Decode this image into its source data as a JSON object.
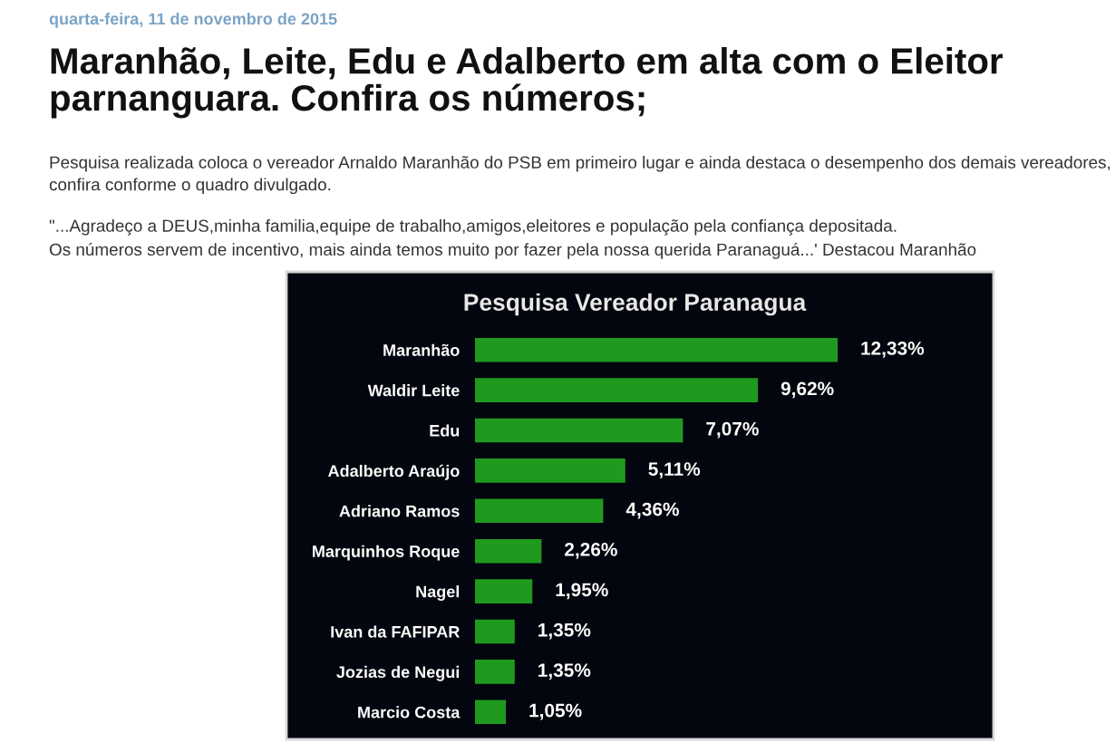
{
  "chart_data": {
    "type": "bar",
    "orientation": "horizontal",
    "title": "Maranhão, Leite, Edu e Adalberto em alta com o Eleitor parnanguara. Confira os números;",
    "subtitle": "Pesquisa Vereador Paranagua",
    "annotations": [
      "quarta-feira, 11 de novembro de 2015",
      "Pesquisa realizada coloca o vereador Arnaldo Maranhão do PSB em primeiro lugar e ainda destaca o desempenho dos demais vereadores, confira conforme o quadro divulgado.",
      "\"...Agradeço a DEUS,minha familia,equipe de trabalho,amigos,eleitores e população pela confiança depositada.",
      "Os números servem de incentivo, mais ainda temos muito por fazer pela nossa querida Paranaguá...' Destacou Maranhão"
    ],
    "categories": [
      "Maranhão",
      "Waldir Leite",
      "Edu",
      "Adalberto Araújo",
      "Adriano Ramos",
      "Marquinhos Roque",
      "Nagel",
      "Ivan da FAFIPAR",
      "Jozias de Negui",
      "Marcio Costa"
    ],
    "values": [
      12.33,
      9.62,
      7.07,
      5.11,
      4.36,
      2.26,
      1.95,
      1.35,
      1.35,
      1.05
    ],
    "value_labels": [
      "12,33%",
      "9,62%",
      "7,07%",
      "5,11%",
      "4,36%",
      "2,26%",
      "1,95%",
      "1,35%",
      "1,35%",
      "1,05%"
    ],
    "color": "#1f9a1f",
    "tick_labels": "y"
  }
}
